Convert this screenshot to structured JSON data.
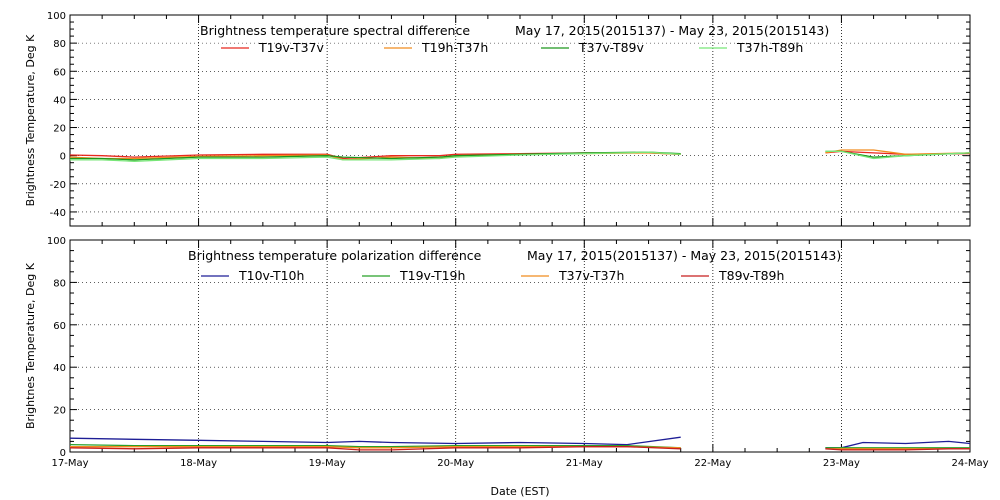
{
  "chart_data": [
    {
      "type": "line",
      "title": "Brightness temperature spectral difference",
      "date_range": "May 17, 2015(2015137) - May 23, 2015(2015143)",
      "ylabel": "Brightness Temperature, Deg K",
      "ylim": [
        -50,
        100
      ],
      "yticks": [
        "-40",
        "-20",
        "0",
        "20",
        "40",
        "60",
        "80",
        "100"
      ],
      "xlim": [
        "2015-05-17",
        "2015-05-24"
      ],
      "grid": "vertical dotted lines at each day",
      "legend": "top",
      "series": [
        {
          "name": "T19v-T37v",
          "color": "#e8281e",
          "x": [
            "2015-05-17T00:00",
            "2015-05-17T06:00",
            "2015-05-17T12:00",
            "2015-05-18T00:00",
            "2015-05-18T12:00",
            "2015-05-19T00:00",
            "2015-05-19T03:00",
            "2015-05-19T12:00",
            "2015-05-19T21:00",
            "2015-05-20T00:00",
            "2015-05-20T12:00",
            "2015-05-21T00:00",
            "2015-05-21T12:00",
            "2015-05-21T18:00",
            "2015-05-22T21:00",
            "2015-05-23T00:00",
            "2015-05-23T06:00",
            "2015-05-23T12:00",
            "2015-05-24T00:00"
          ],
          "values": [
            0.5,
            0,
            -1,
            0.5,
            1,
            1,
            -2,
            0,
            0,
            1,
            1.5,
            2,
            2,
            1,
            2,
            3,
            2,
            1,
            1.5
          ]
        },
        {
          "name": "T19h-T37h",
          "color": "#f08c1e",
          "x": [
            "2015-05-17T00:00",
            "2015-05-17T06:00",
            "2015-05-17T12:00",
            "2015-05-18T00:00",
            "2015-05-18T12:00",
            "2015-05-19T00:00",
            "2015-05-19T03:00",
            "2015-05-19T12:00",
            "2015-05-19T21:00",
            "2015-05-20T00:00",
            "2015-05-20T12:00",
            "2015-05-21T00:00",
            "2015-05-21T12:00",
            "2015-05-21T18:00",
            "2015-05-22T21:00",
            "2015-05-23T00:00",
            "2015-05-23T06:00",
            "2015-05-23T12:00",
            "2015-05-24T00:00"
          ],
          "values": [
            -1,
            -2,
            -2,
            -0.5,
            0,
            0.5,
            -3,
            -1,
            -2,
            0,
            1,
            1.5,
            2,
            1,
            2,
            4,
            4,
            1,
            2
          ]
        },
        {
          "name": "T37v-T89v",
          "color": "#1e961e",
          "x": [
            "2015-05-17T00:00",
            "2015-05-17T06:00",
            "2015-05-17T12:00",
            "2015-05-18T00:00",
            "2015-05-18T12:00",
            "2015-05-19T00:00",
            "2015-05-19T03:00",
            "2015-05-19T12:00",
            "2015-05-19T21:00",
            "2015-05-20T00:00",
            "2015-05-20T12:00",
            "2015-05-21T00:00",
            "2015-05-21T12:00",
            "2015-05-21T18:00",
            "2015-05-22T21:00",
            "2015-05-23T00:00",
            "2015-05-23T06:00",
            "2015-05-23T12:00",
            "2015-05-24T00:00"
          ],
          "values": [
            -2,
            -2,
            -3,
            -1,
            -1,
            0,
            -1,
            -2,
            -1,
            0,
            1,
            2,
            2.5,
            1.5,
            3,
            3,
            -1,
            0,
            2
          ]
        },
        {
          "name": "T37h-T89h",
          "color": "#78e678",
          "x": [
            "2015-05-17T00:00",
            "2015-05-17T06:00",
            "2015-05-17T12:00",
            "2015-05-18T00:00",
            "2015-05-18T12:00",
            "2015-05-19T00:00",
            "2015-05-19T03:00",
            "2015-05-19T12:00",
            "2015-05-19T21:00",
            "2015-05-20T00:00",
            "2015-05-20T12:00",
            "2015-05-21T00:00",
            "2015-05-21T12:00",
            "2015-05-21T18:00",
            "2015-05-22T21:00",
            "2015-05-23T00:00",
            "2015-05-23T06:00",
            "2015-05-23T12:00",
            "2015-05-24T00:00"
          ],
          "values": [
            -3,
            -3,
            -4,
            -2,
            -2,
            -1,
            -3,
            -3,
            -2,
            -1,
            0.5,
            1.5,
            2.5,
            1,
            3,
            3,
            -2,
            0,
            2
          ]
        }
      ]
    },
    {
      "type": "line",
      "title": "Brightness temperature polarization difference",
      "date_range": "May 17, 2015(2015137) - May 23, 2015(2015143)",
      "ylabel": "Brightnes Temperature, Deg K",
      "xlabel": "Date (EST)",
      "ylim": [
        0,
        100
      ],
      "yticks": [
        "0",
        "20",
        "40",
        "60",
        "80",
        "100"
      ],
      "xlim": [
        "2015-05-17",
        "2015-05-24"
      ],
      "xticks": [
        "17-May",
        "18-May",
        "19-May",
        "20-May",
        "21-May",
        "22-May",
        "23-May",
        "24-May"
      ],
      "grid": "vertical dotted lines at each day",
      "legend": "top",
      "series": [
        {
          "name": "T10v-T10h",
          "color": "#1e1e96",
          "x": [
            "2015-05-17T00:00",
            "2015-05-17T12:00",
            "2015-05-18T00:00",
            "2015-05-18T12:00",
            "2015-05-19T00:00",
            "2015-05-19T06:00",
            "2015-05-19T12:00",
            "2015-05-20T00:00",
            "2015-05-20T12:00",
            "2015-05-21T00:00",
            "2015-05-21T08:00",
            "2015-05-21T18:00",
            "2015-05-22T21:00",
            "2015-05-23T00:00",
            "2015-05-23T04:00",
            "2015-05-23T12:00",
            "2015-05-23T20:00",
            "2015-05-24T00:00"
          ],
          "values": [
            6.5,
            6,
            5.5,
            5,
            4.5,
            5,
            4.5,
            4,
            4.5,
            4,
            3.5,
            7,
            2,
            2,
            4.5,
            4,
            5,
            4
          ]
        },
        {
          "name": "T19v-T19h",
          "color": "#28a028",
          "x": [
            "2015-05-17T00:00",
            "2015-05-17T12:00",
            "2015-05-18T00:00",
            "2015-05-18T12:00",
            "2015-05-19T00:00",
            "2015-05-19T06:00",
            "2015-05-19T12:00",
            "2015-05-20T00:00",
            "2015-05-20T12:00",
            "2015-05-21T00:00",
            "2015-05-21T08:00",
            "2015-05-21T18:00",
            "2015-05-22T21:00",
            "2015-05-23T00:00",
            "2015-05-23T04:00",
            "2015-05-23T12:00",
            "2015-05-23T20:00",
            "2015-05-24T00:00"
          ],
          "values": [
            3.5,
            3,
            3,
            3,
            3,
            2.5,
            2.5,
            3,
            3,
            3,
            3,
            2,
            2,
            2,
            2,
            2,
            2,
            2
          ]
        },
        {
          "name": "T37v-T37h",
          "color": "#f08c1e",
          "x": [
            "2015-05-17T00:00",
            "2015-05-17T12:00",
            "2015-05-18T00:00",
            "2015-05-18T12:00",
            "2015-05-19T00:00",
            "2015-05-19T06:00",
            "2015-05-19T12:00",
            "2015-05-20T00:00",
            "2015-05-20T12:00",
            "2015-05-21T00:00",
            "2015-05-21T08:00",
            "2015-05-21T18:00",
            "2015-05-22T21:00",
            "2015-05-23T00:00",
            "2015-05-23T04:00",
            "2015-05-23T12:00",
            "2015-05-23T20:00",
            "2015-05-24T00:00"
          ],
          "values": [
            2.5,
            2.5,
            2.5,
            2.5,
            2.5,
            2,
            2,
            2.5,
            2.5,
            2.5,
            2.5,
            2,
            1.5,
            1.5,
            1.5,
            1.5,
            1.5,
            1.5
          ]
        },
        {
          "name": "T89v-T89h",
          "color": "#c81e1e",
          "x": [
            "2015-05-17T00:00",
            "2015-05-17T12:00",
            "2015-05-18T00:00",
            "2015-05-18T12:00",
            "2015-05-19T00:00",
            "2015-05-19T06:00",
            "2015-05-19T12:00",
            "2015-05-20T00:00",
            "2015-05-20T12:00",
            "2015-05-21T00:00",
            "2015-05-21T08:00",
            "2015-05-21T18:00",
            "2015-05-22T21:00",
            "2015-05-23T00:00",
            "2015-05-23T04:00",
            "2015-05-23T12:00",
            "2015-05-23T20:00",
            "2015-05-24T00:00"
          ],
          "values": [
            2,
            1.5,
            2,
            2,
            2,
            1,
            1,
            2,
            2,
            2.5,
            2.5,
            1.5,
            1.5,
            1,
            1,
            1,
            1.5,
            1.5
          ]
        }
      ]
    }
  ]
}
